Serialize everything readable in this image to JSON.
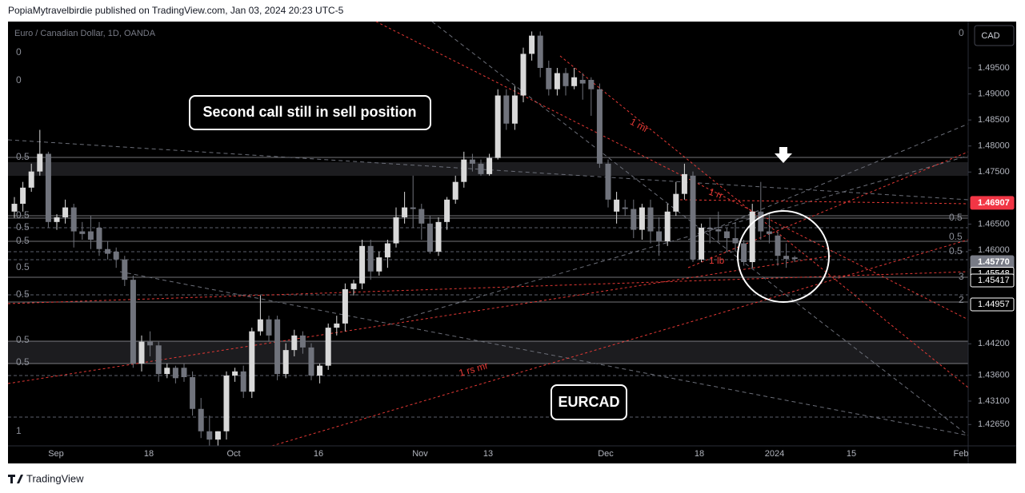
{
  "header": {
    "attribution": "PopiaMytravelbirdie published on TradingView.com, Jan 03, 2024 20:23 UTC-5"
  },
  "chart": {
    "symbol": "Euro / Canadian Dollar, 1D, OANDA",
    "currency": "CAD",
    "price_range": [
      1.4224,
      1.5039
    ],
    "price_ticks": [
      {
        "value": 1.495,
        "label": "1.49500"
      },
      {
        "value": 1.49,
        "label": "1.49000"
      },
      {
        "value": 1.485,
        "label": "1.48500"
      },
      {
        "value": 1.48,
        "label": "1.48000"
      },
      {
        "value": 1.475,
        "label": "1.47500"
      },
      {
        "value": 1.465,
        "label": "1.46500"
      },
      {
        "value": 1.46,
        "label": "1.46000"
      },
      {
        "value": 1.442,
        "label": "1.44200"
      },
      {
        "value": 1.436,
        "label": "1.43600"
      },
      {
        "value": 1.431,
        "label": "1.43100"
      },
      {
        "value": 1.4265,
        "label": "1.42650"
      }
    ],
    "price_labels": [
      {
        "value": 1.46907,
        "label": "1.46907"
      },
      {
        "value": 1.4577,
        "label": "1.45770"
      },
      {
        "value": 1.45548,
        "label": "1.45548"
      },
      {
        "value": 1.45417,
        "label": "1.45417"
      },
      {
        "value": 1.44957,
        "label": "1.44957"
      }
    ],
    "time_labels": [
      "Sep",
      "18",
      "Oct",
      "16",
      "Nov",
      "13",
      "Dec",
      "18",
      "2024",
      "15",
      "Feb"
    ],
    "annotations": [
      "Second call still in sell position",
      "EURCAD"
    ],
    "fib_labels": [
      "0.5",
      "0",
      "1",
      "2",
      "3",
      "1 mr",
      "1 rr",
      "1 lb",
      "1 rs mr"
    ],
    "candles": [
      [
        1.4674,
        1.4702,
        1.4662,
        1.4689
      ],
      [
        1.4689,
        1.4731,
        1.4674,
        1.472
      ],
      [
        1.472,
        1.4766,
        1.4712,
        1.4751
      ],
      [
        1.4751,
        1.4831,
        1.4743,
        1.4785
      ],
      [
        1.4785,
        1.4789,
        1.4643,
        1.4654
      ],
      [
        1.4654,
        1.4669,
        1.4639,
        1.4663
      ],
      [
        1.4663,
        1.4697,
        1.4651,
        1.4682
      ],
      [
        1.4682,
        1.4689,
        1.4605,
        1.4636
      ],
      [
        1.4636,
        1.4654,
        1.462,
        1.4631
      ],
      [
        1.4636,
        1.4666,
        1.4602,
        1.462
      ],
      [
        1.4643,
        1.4654,
        1.4589,
        1.4602
      ],
      [
        1.4602,
        1.4617,
        1.4582,
        1.4593
      ],
      [
        1.4597,
        1.4605,
        1.4566,
        1.4582
      ],
      [
        1.4582,
        1.4589,
        1.4531,
        1.4543
      ],
      [
        1.4543,
        1.4551,
        1.4374,
        1.4382
      ],
      [
        1.4382,
        1.4436,
        1.4367,
        1.4424
      ],
      [
        1.4424,
        1.4444,
        1.4396,
        1.4417
      ],
      [
        1.4417,
        1.4424,
        1.4347,
        1.4362
      ],
      [
        1.4362,
        1.4382,
        1.4354,
        1.4374
      ],
      [
        1.4374,
        1.4378,
        1.4344,
        1.4354
      ],
      [
        1.4374,
        1.4382,
        1.4347,
        1.4356
      ],
      [
        1.4356,
        1.4367,
        1.4282,
        1.4295
      ],
      [
        1.4295,
        1.4316,
        1.4239,
        1.4252
      ],
      [
        1.4252,
        1.4282,
        1.4224,
        1.4236
      ],
      [
        1.4236,
        1.4252,
        1.4224,
        1.4252
      ],
      [
        1.4252,
        1.4367,
        1.4236,
        1.4359
      ],
      [
        1.4359,
        1.4374,
        1.4347,
        1.4367
      ],
      [
        1.4367,
        1.4378,
        1.4316,
        1.4328
      ],
      [
        1.4328,
        1.4451,
        1.4316,
        1.4444
      ],
      [
        1.4444,
        1.4513,
        1.4436,
        1.4467
      ],
      [
        1.4467,
        1.4474,
        1.4424,
        1.4436
      ],
      [
        1.4467,
        1.4474,
        1.435,
        1.4362
      ],
      [
        1.4362,
        1.4421,
        1.4354,
        1.4408
      ],
      [
        1.4408,
        1.4447,
        1.4396,
        1.4436
      ],
      [
        1.4436,
        1.4444,
        1.4401,
        1.4413
      ],
      [
        1.4413,
        1.4421,
        1.435,
        1.4359
      ],
      [
        1.4359,
        1.4382,
        1.4344,
        1.4378
      ],
      [
        1.4378,
        1.4459,
        1.437,
        1.4451
      ],
      [
        1.4451,
        1.4474,
        1.4436,
        1.4459
      ],
      [
        1.4459,
        1.4536,
        1.4444,
        1.4525
      ],
      [
        1.4525,
        1.4543,
        1.4513,
        1.4536
      ],
      [
        1.4536,
        1.462,
        1.4525,
        1.4608
      ],
      [
        1.4608,
        1.462,
        1.4543,
        1.4559
      ],
      [
        1.4559,
        1.4597,
        1.4551,
        1.4586
      ],
      [
        1.4586,
        1.462,
        1.4566,
        1.4613
      ],
      [
        1.4613,
        1.4682,
        1.4605,
        1.4663
      ],
      [
        1.4663,
        1.4712,
        1.4651,
        1.4682
      ],
      [
        1.4682,
        1.4743,
        1.4643,
        1.4679
      ],
      [
        1.4679,
        1.4689,
        1.462,
        1.4651
      ],
      [
        1.4651,
        1.4666,
        1.4593,
        1.4597
      ],
      [
        1.4597,
        1.4663,
        1.4589,
        1.4654
      ],
      [
        1.4654,
        1.4702,
        1.4639,
        1.4697
      ],
      [
        1.4697,
        1.4743,
        1.4689,
        1.4731
      ],
      [
        1.4731,
        1.4789,
        1.472,
        1.4774
      ],
      [
        1.4774,
        1.4785,
        1.4751,
        1.4766
      ],
      [
        1.4766,
        1.4774,
        1.4743,
        1.4746
      ],
      [
        1.4746,
        1.4785,
        1.4743,
        1.4777
      ],
      [
        1.4777,
        1.4909,
        1.4774,
        1.4897
      ],
      [
        1.4897,
        1.4909,
        1.4831,
        1.4843
      ],
      [
        1.4843,
        1.4915,
        1.4831,
        1.4897
      ],
      [
        1.4897,
        1.4989,
        1.4884,
        1.4977
      ],
      [
        1.4977,
        1.502,
        1.4964,
        1.5012
      ],
      [
        1.5012,
        1.502,
        1.4932,
        1.495
      ],
      [
        1.495,
        1.4964,
        1.4897,
        1.4909
      ],
      [
        1.4909,
        1.495,
        1.4897,
        1.494
      ],
      [
        1.494,
        1.495,
        1.4897,
        1.4915
      ],
      [
        1.4915,
        1.495,
        1.4909,
        1.4932
      ],
      [
        1.4927,
        1.494,
        1.4889,
        1.492
      ],
      [
        1.4927,
        1.4932,
        1.4858,
        1.4909
      ],
      [
        1.4909,
        1.492,
        1.4758,
        1.4766
      ],
      [
        1.4766,
        1.4774,
        1.4682,
        1.4697
      ],
      [
        1.4674,
        1.4712,
        1.4651,
        1.4697
      ],
      [
        1.4682,
        1.4697,
        1.4666,
        1.4679
      ],
      [
        1.4679,
        1.4697,
        1.4623,
        1.4639
      ],
      [
        1.4639,
        1.4689,
        1.462,
        1.4682
      ],
      [
        1.4682,
        1.4697,
        1.4613,
        1.4636
      ],
      [
        1.4636,
        1.4663,
        1.4589,
        1.4617
      ],
      [
        1.4617,
        1.4689,
        1.4608,
        1.4674
      ],
      [
        1.4674,
        1.4731,
        1.4666,
        1.4708
      ],
      [
        1.4708,
        1.4766,
        1.4697,
        1.4746
      ],
      [
        1.4743,
        1.4751,
        1.4577,
        1.4582
      ],
      [
        1.4582,
        1.4651,
        1.4577,
        1.4643
      ],
      [
        1.4643,
        1.4663,
        1.4613,
        1.464
      ],
      [
        1.464,
        1.4674,
        1.4617,
        1.4636
      ],
      [
        1.4636,
        1.4643,
        1.4597,
        1.4623
      ],
      [
        1.4623,
        1.4654,
        1.4597,
        1.4613
      ],
      [
        1.4613,
        1.462,
        1.457,
        1.4577
      ],
      [
        1.4577,
        1.4689,
        1.4566,
        1.4674
      ],
      [
        1.4674,
        1.4731,
        1.462,
        1.4636
      ],
      [
        1.4636,
        1.4669,
        1.4613,
        1.4631
      ],
      [
        1.4628,
        1.4636,
        1.457,
        1.4589
      ],
      [
        1.4589,
        1.4613,
        1.4566,
        1.4583
      ],
      [
        1.4586,
        1.4589,
        1.4577,
        1.4583
      ]
    ]
  },
  "footer": {
    "brand": "TradingView"
  }
}
